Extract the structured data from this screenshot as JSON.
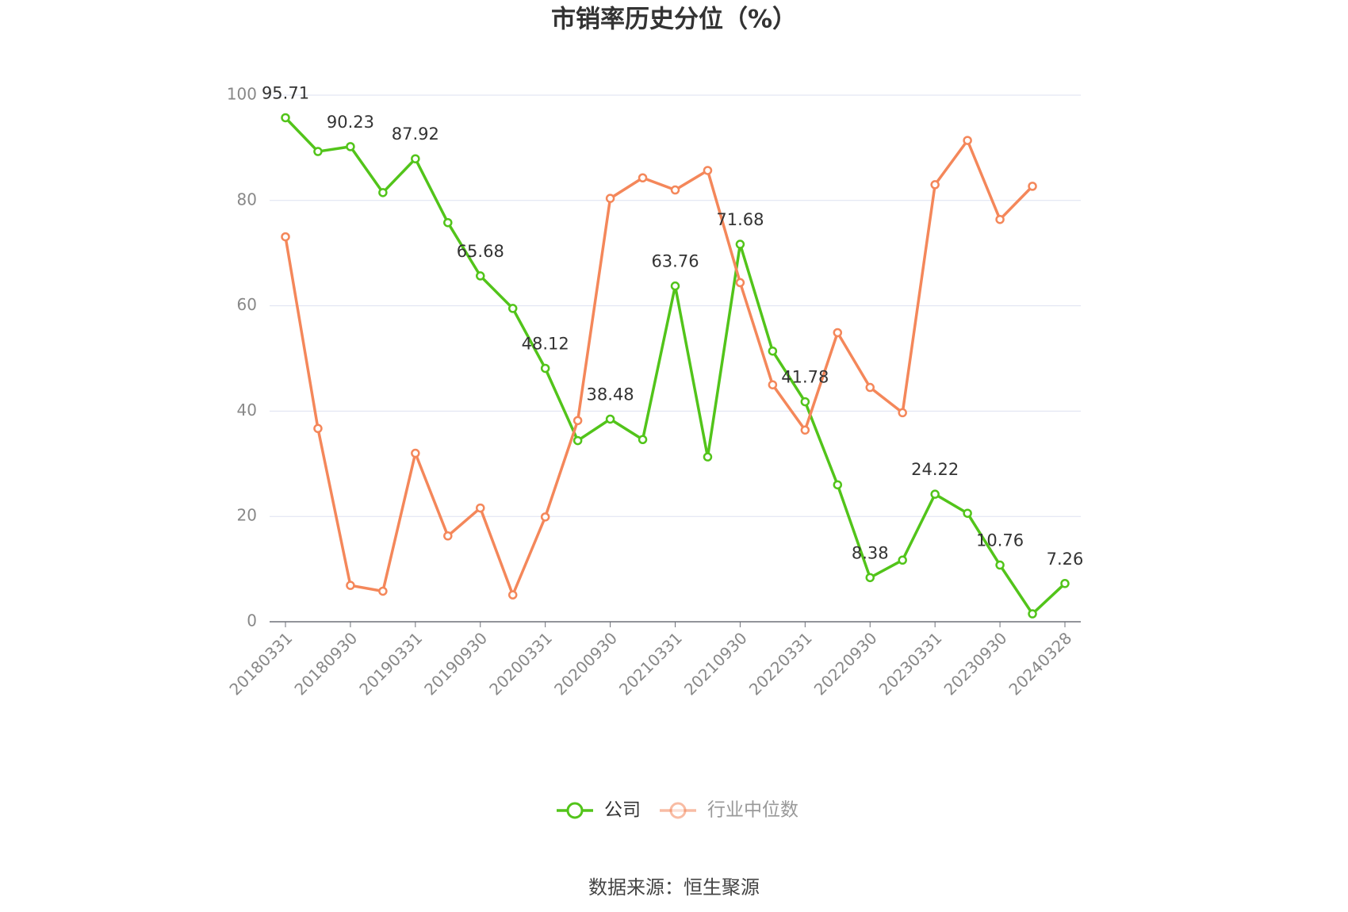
{
  "chart_data": {
    "type": "line",
    "title": "市销率历史分位（%）",
    "categories": [
      "20180331",
      null,
      "20180930",
      null,
      "20190331",
      null,
      "20190930",
      null,
      "20200331",
      null,
      "20200930",
      null,
      "20210331",
      null,
      "20210930",
      null,
      "20220331",
      null,
      "20220930",
      null,
      "20230331",
      null,
      "20230930",
      null,
      "20240328"
    ],
    "series": [
      {
        "name": "公司",
        "color": "#52c41a",
        "values": [
          95.71,
          89.3,
          90.23,
          81.5,
          87.92,
          75.8,
          65.68,
          59.5,
          48.12,
          34.4,
          38.48,
          34.6,
          63.76,
          31.3,
          71.68,
          51.4,
          41.78,
          26.0,
          8.38,
          11.7,
          24.22,
          20.6,
          10.76,
          1.5,
          7.26
        ]
      },
      {
        "name": "行业中位数",
        "color": "#f4875a",
        "values": [
          73.1,
          36.7,
          6.9,
          5.8,
          32.0,
          16.3,
          21.6,
          5.1,
          19.9,
          38.2,
          80.4,
          84.3,
          82.0,
          85.7,
          64.4,
          45.0,
          36.4,
          54.9,
          44.5,
          39.7,
          83.0,
          91.4,
          76.4,
          82.7,
          null
        ]
      }
    ],
    "ylim": [
      0,
      100
    ],
    "yticks": [
      0,
      20,
      40,
      60,
      80,
      100
    ],
    "grid": true,
    "source": "数据来源：恒生聚源"
  }
}
